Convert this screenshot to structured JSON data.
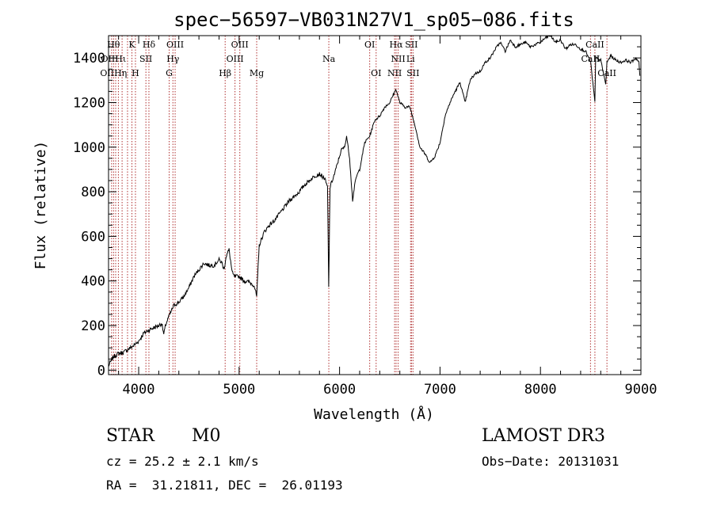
{
  "chart_data": {
    "type": "line",
    "title": "spec−56597−VB031N27V1_sp05−086.fits",
    "xlabel": "Wavelength (Å)",
    "ylabel": "Flux (relative)",
    "xlim": [
      3700,
      9000
    ],
    "ylim": [
      -20,
      1500
    ],
    "x_ticks": [
      4000,
      5000,
      6000,
      7000,
      8000,
      9000
    ],
    "y_ticks": [
      0,
      200,
      400,
      600,
      800,
      1000,
      1200,
      1400
    ],
    "grid": false,
    "series": [
      {
        "name": "spectrum",
        "x": [
          3700,
          3750,
          3800,
          3850,
          3900,
          3950,
          4000,
          4050,
          4100,
          4150,
          4200,
          4230,
          4250,
          4270,
          4300,
          4330,
          4350,
          4400,
          4450,
          4500,
          4550,
          4600,
          4650,
          4700,
          4750,
          4800,
          4830,
          4850,
          4870,
          4900,
          4930,
          4950,
          5000,
          5050,
          5100,
          5150,
          5175,
          5200,
          5250,
          5300,
          5350,
          5400,
          5450,
          5500,
          5550,
          5600,
          5650,
          5700,
          5750,
          5800,
          5850,
          5880,
          5892,
          5905,
          5950,
          6000,
          6020,
          6050,
          6070,
          6100,
          6130,
          6150,
          6170,
          6200,
          6250,
          6300,
          6350,
          6400,
          6450,
          6500,
          6530,
          6563,
          6580,
          6600,
          6650,
          6700,
          6750,
          6800,
          6850,
          6900,
          6950,
          7000,
          7050,
          7100,
          7150,
          7200,
          7250,
          7300,
          7350,
          7400,
          7450,
          7500,
          7550,
          7600,
          7650,
          7700,
          7750,
          7800,
          7850,
          7900,
          7950,
          8000,
          8050,
          8100,
          8150,
          8200,
          8250,
          8300,
          8350,
          8400,
          8450,
          8500,
          8542,
          8550,
          8600,
          8650,
          8662,
          8700,
          8750,
          8800,
          8850,
          8900,
          8950,
          8980,
          8990
        ],
        "y": [
          20,
          60,
          75,
          80,
          95,
          110,
          130,
          165,
          180,
          190,
          200,
          210,
          160,
          205,
          240,
          270,
          290,
          305,
          330,
          370,
          420,
          450,
          480,
          470,
          470,
          495,
          480,
          450,
          510,
          540,
          440,
          420,
          420,
          400,
          395,
          380,
          330,
          560,
          620,
          650,
          670,
          700,
          730,
          760,
          780,
          800,
          830,
          850,
          870,
          880,
          860,
          820,
          370,
          820,
          880,
          960,
          990,
          1000,
          1050,
          950,
          760,
          830,
          870,
          900,
          1020,
          1050,
          1120,
          1140,
          1180,
          1200,
          1230,
          1260,
          1230,
          1200,
          1180,
          1180,
          1100,
          1000,
          970,
          930,
          960,
          1020,
          1140,
          1200,
          1250,
          1290,
          1200,
          1300,
          1330,
          1340,
          1380,
          1400,
          1440,
          1470,
          1430,
          1480,
          1450,
          1460,
          1470,
          1450,
          1460,
          1470,
          1490,
          1500,
          1470,
          1480,
          1440,
          1460,
          1460,
          1440,
          1430,
          1380,
          1200,
          1400,
          1390,
          1280,
          1380,
          1410,
          1390,
          1380,
          1390,
          1380,
          1400,
          1380,
          1320
        ]
      }
    ],
    "lines": [
      {
        "x": 3730,
        "label": "O II"
      },
      {
        "x": 3750,
        "label": "Hθ"
      },
      {
        "x": 3771,
        "label": "Hι"
      },
      {
        "x": 3798,
        "label": "Hθ"
      },
      {
        "x": 3835,
        "label": "Hη"
      },
      {
        "x": 3889,
        "label": "Hζ"
      },
      {
        "x": 3933,
        "label": "K"
      },
      {
        "x": 3968,
        "label": "H"
      },
      {
        "x": 4072,
        "label": "S II"
      },
      {
        "x": 4102,
        "label": "Hδ"
      },
      {
        "x": 4304,
        "label": "G"
      },
      {
        "x": 4341,
        "label": "Hγ"
      },
      {
        "x": 4363,
        "label": "O III"
      },
      {
        "x": 4861,
        "label": "Hβ"
      },
      {
        "x": 4959,
        "label": "O III"
      },
      {
        "x": 5007,
        "label": "O III"
      },
      {
        "x": 5175,
        "label": "Mg"
      },
      {
        "x": 5893,
        "label": "Na"
      },
      {
        "x": 6300,
        "label": "O I"
      },
      {
        "x": 6364,
        "label": "O I"
      },
      {
        "x": 6548,
        "label": "N II"
      },
      {
        "x": 6563,
        "label": "Hα"
      },
      {
        "x": 6583,
        "label": "N II"
      },
      {
        "x": 6707,
        "label": "Li"
      },
      {
        "x": 6716,
        "label": "S II"
      },
      {
        "x": 6731,
        "label": "S II"
      },
      {
        "x": 8498,
        "label": "Ca II"
      },
      {
        "x": 8542,
        "label": "Ca II"
      },
      {
        "x": 8662,
        "label": "Ca II"
      }
    ],
    "line_labels": [
      {
        "text": "Hθ",
        "x": 3750,
        "row": 0
      },
      {
        "text": "K",
        "x": 3933,
        "row": 0
      },
      {
        "text": "Hδ",
        "x": 4102,
        "row": 0
      },
      {
        "text": "OIII",
        "x": 4363,
        "row": 0
      },
      {
        "text": "OIII",
        "x": 5007,
        "row": 0
      },
      {
        "text": "OI",
        "x": 6300,
        "row": 0
      },
      {
        "text": "Hα",
        "x": 6563,
        "row": 0
      },
      {
        "text": "SII",
        "x": 6716,
        "row": 0
      },
      {
        "text": "CaII",
        "x": 8542,
        "row": 0
      },
      {
        "text": "OIIHι",
        "x": 3750,
        "row": 1
      },
      {
        "text": "SII",
        "x": 4072,
        "row": 1
      },
      {
        "text": "Hγ",
        "x": 4341,
        "row": 1
      },
      {
        "text": "OIII",
        "x": 4959,
        "row": 1
      },
      {
        "text": "Na",
        "x": 5893,
        "row": 1
      },
      {
        "text": "NII",
        "x": 6583,
        "row": 1
      },
      {
        "text": "Li",
        "x": 6707,
        "row": 1
      },
      {
        "text": "CaII",
        "x": 8498,
        "row": 1
      },
      {
        "text": "OIIHη",
        "x": 3750,
        "row": 2
      },
      {
        "text": "H",
        "x": 3968,
        "row": 2
      },
      {
        "text": "G",
        "x": 4304,
        "row": 2
      },
      {
        "text": "Hβ",
        "x": 4861,
        "row": 2
      },
      {
        "text": "Mg",
        "x": 5175,
        "row": 2
      },
      {
        "text": "OI",
        "x": 6364,
        "row": 2
      },
      {
        "text": "NII",
        "x": 6548,
        "row": 2
      },
      {
        "text": "SII",
        "x": 6731,
        "row": 2
      },
      {
        "text": "CaII",
        "x": 8662,
        "row": 2
      }
    ],
    "line_color": "#b03030"
  },
  "info": {
    "class_label": "STAR",
    "subclass": "M0",
    "survey": "LAMOST DR3",
    "cz_line": "cz = 25.2 ± 2.1 km/s",
    "obs_date": "Obs−Date: 20131031",
    "coords": "RA =  31.21811, DEC =  26.01193"
  }
}
